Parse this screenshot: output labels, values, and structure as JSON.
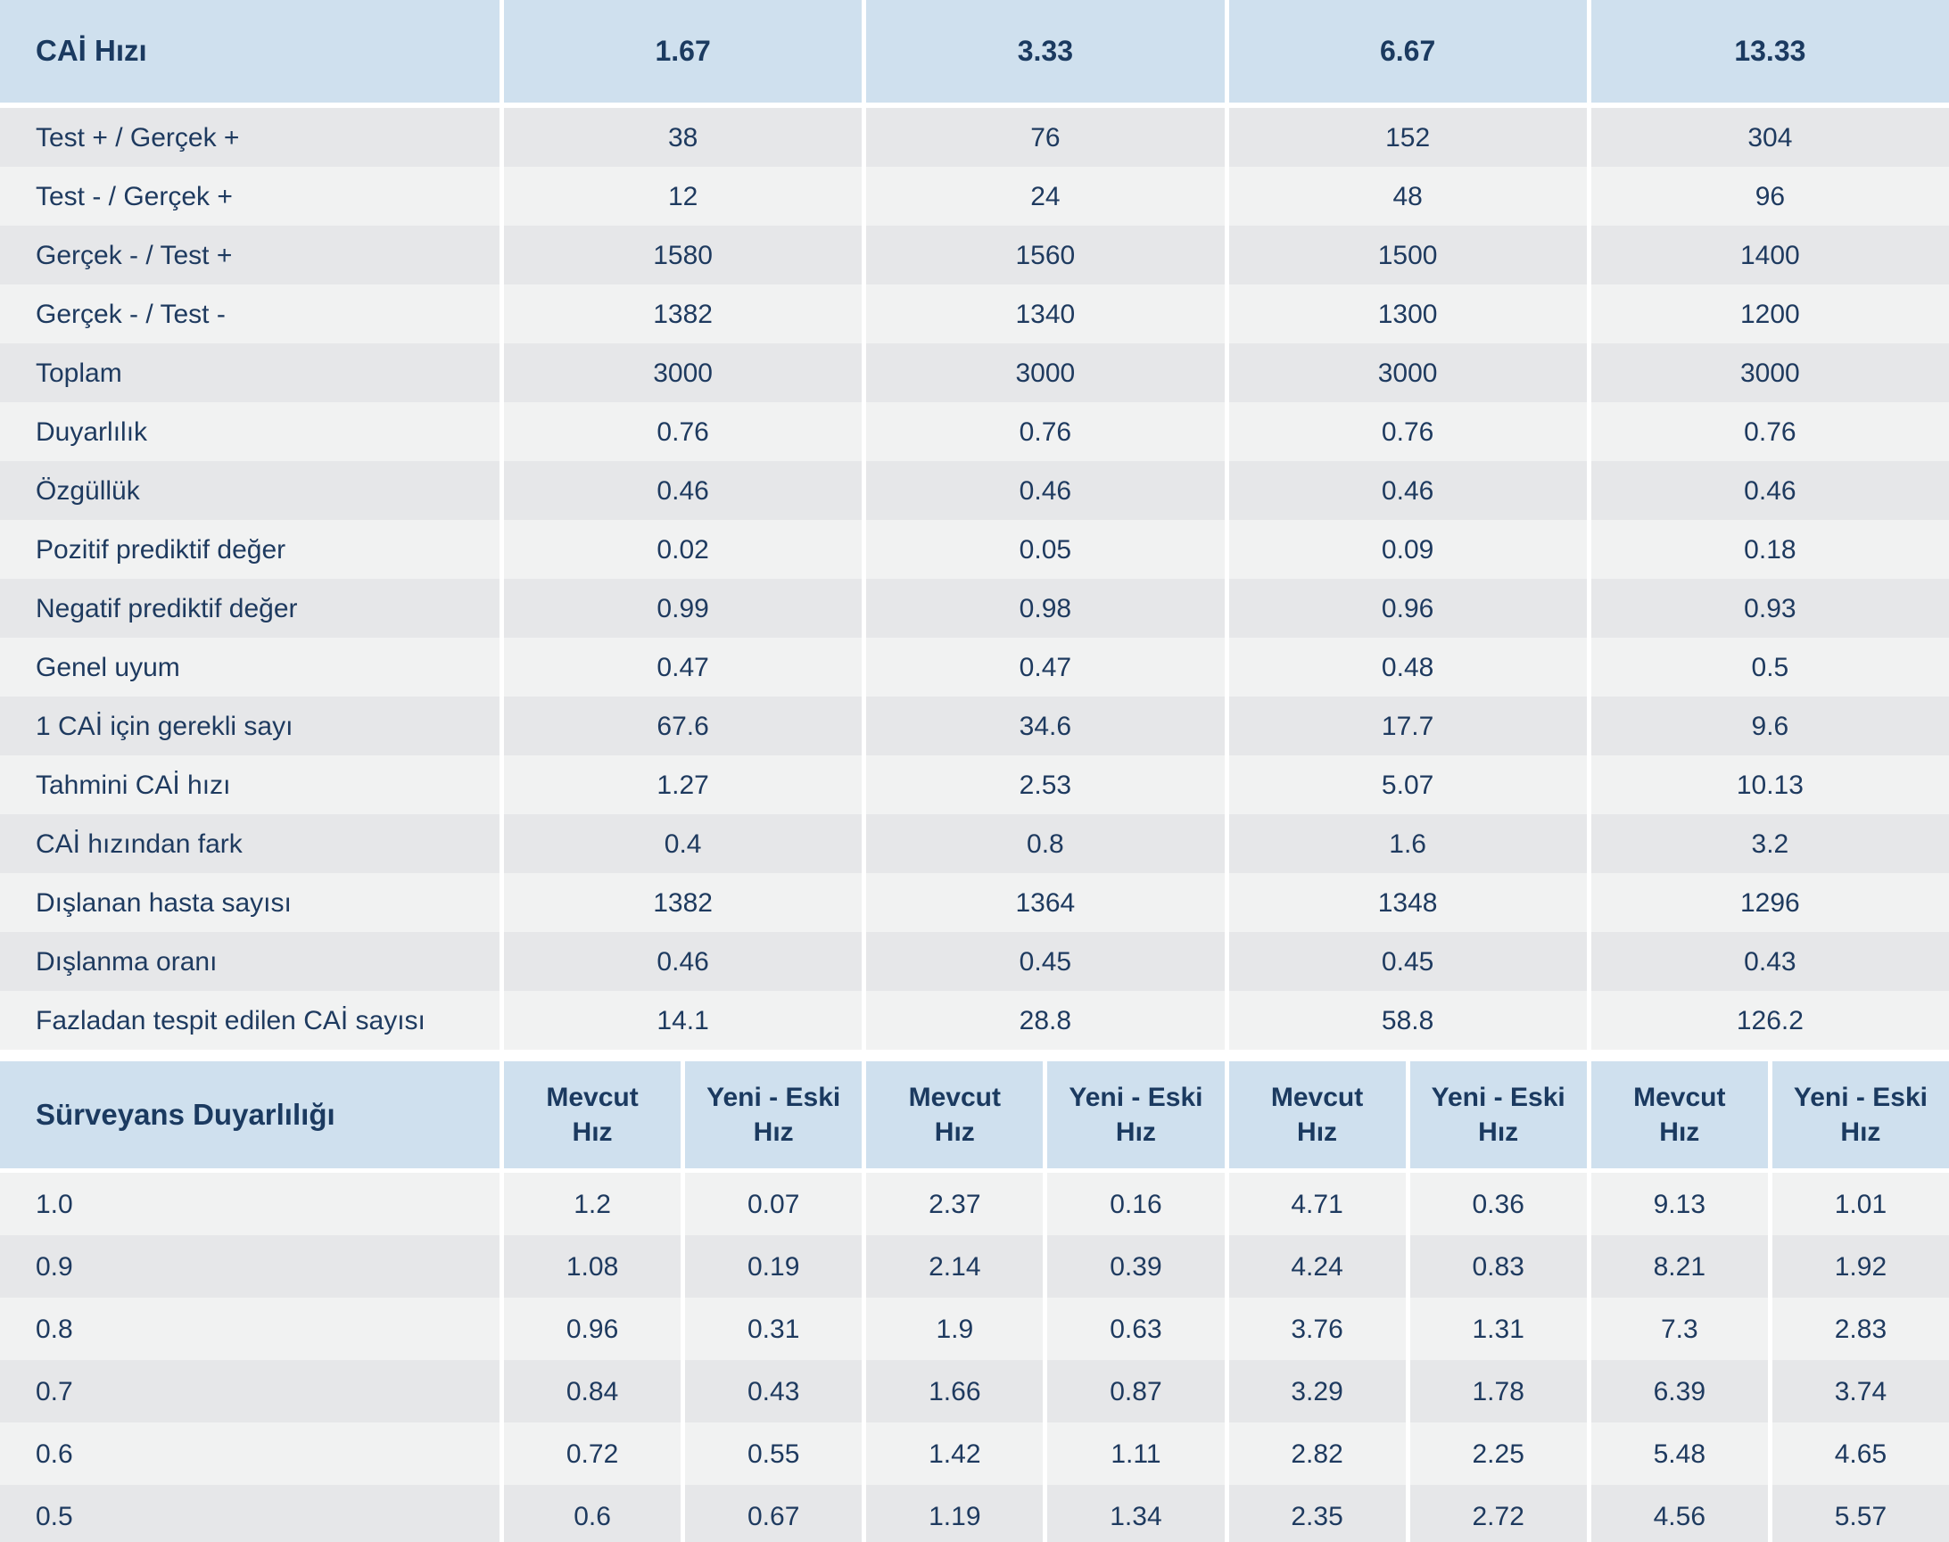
{
  "colors": {
    "header_bg": "#cfe0ee",
    "row_dark": "#e6e7e9",
    "row_light": "#f1f2f2",
    "text": "#1e3a5f",
    "header_text": "#1b3a60",
    "background": "#ffffff"
  },
  "chart_data": [
    {
      "type": "table",
      "title": "CAİ Hızı",
      "corner_label": "CAİ Hızı",
      "columns": [
        "1.67",
        "3.33",
        "6.67",
        "13.33"
      ],
      "rows": [
        {
          "label": "Test + / Gerçek +",
          "values": [
            38,
            76,
            152,
            304
          ]
        },
        {
          "label": "Test - / Gerçek +",
          "values": [
            12,
            24,
            48,
            96
          ]
        },
        {
          "label": "Gerçek - / Test +",
          "values": [
            1580,
            1560,
            1500,
            1400
          ]
        },
        {
          "label": "Gerçek - / Test -",
          "values": [
            1382,
            1340,
            1300,
            1200
          ]
        },
        {
          "label": "Toplam",
          "values": [
            3000,
            3000,
            3000,
            3000
          ]
        },
        {
          "label": "Duyarlılık",
          "values": [
            0.76,
            0.76,
            0.76,
            0.76
          ]
        },
        {
          "label": "Özgüllük",
          "values": [
            0.46,
            0.46,
            0.46,
            0.46
          ]
        },
        {
          "label": "Pozitif prediktif değer",
          "values": [
            0.02,
            0.05,
            0.09,
            0.18
          ]
        },
        {
          "label": "Negatif prediktif değer",
          "values": [
            0.99,
            0.98,
            0.96,
            0.93
          ]
        },
        {
          "label": "Genel uyum",
          "values": [
            0.47,
            0.47,
            0.48,
            0.5
          ]
        },
        {
          "label": "1 CAİ için gerekli sayı",
          "values": [
            67.6,
            34.6,
            17.7,
            9.6
          ]
        },
        {
          "label": "Tahmini CAİ hızı",
          "values": [
            1.27,
            2.53,
            5.07,
            10.13
          ]
        },
        {
          "label": "CAİ hızından fark",
          "values": [
            0.4,
            0.8,
            1.6,
            3.2
          ]
        },
        {
          "label": "Dışlanan hasta sayısı",
          "values": [
            1382,
            1364,
            1348,
            1296
          ]
        },
        {
          "label": "Dışlanma oranı",
          "values": [
            0.46,
            0.45,
            0.45,
            0.43
          ]
        },
        {
          "label": "Fazladan tespit edilen CAİ sayısı",
          "values": [
            14.1,
            28.8,
            58.8,
            126.2
          ]
        }
      ],
      "first_row_shade": "dark",
      "layout": {
        "legend": "none",
        "grid": "striped-rows"
      }
    },
    {
      "type": "table",
      "title": "Sürveyans Duyarlılığı",
      "corner_label": "Sürveyans Duyarlılığı",
      "columns": [
        {
          "line1": "Mevcut",
          "line2": "Hız"
        },
        {
          "line1": "Yeni - Eski",
          "line2": "Hız"
        },
        {
          "line1": "Mevcut",
          "line2": "Hız"
        },
        {
          "line1": "Yeni - Eski",
          "line2": "Hız"
        },
        {
          "line1": "Mevcut",
          "line2": "Hız"
        },
        {
          "line1": "Yeni - Eski",
          "line2": "Hız"
        },
        {
          "line1": "Mevcut",
          "line2": "Hız"
        },
        {
          "line1": "Yeni - Eski",
          "line2": "Hız"
        }
      ],
      "rows": [
        {
          "label": "1.0",
          "values": [
            1.2,
            0.07,
            2.37,
            0.16,
            4.71,
            0.36,
            9.13,
            1.01
          ]
        },
        {
          "label": "0.9",
          "values": [
            1.08,
            0.19,
            2.14,
            0.39,
            4.24,
            0.83,
            8.21,
            1.92
          ]
        },
        {
          "label": "0.8",
          "values": [
            0.96,
            0.31,
            1.9,
            0.63,
            3.76,
            1.31,
            7.3,
            2.83
          ]
        },
        {
          "label": "0.7",
          "values": [
            0.84,
            0.43,
            1.66,
            0.87,
            3.29,
            1.78,
            6.39,
            3.74
          ]
        },
        {
          "label": "0.6",
          "values": [
            0.72,
            0.55,
            1.42,
            1.11,
            2.82,
            2.25,
            5.48,
            4.65
          ]
        },
        {
          "label": "0.5",
          "values": [
            0.6,
            0.67,
            1.19,
            1.34,
            2.35,
            2.72,
            4.56,
            5.57
          ]
        }
      ],
      "first_row_shade": "light",
      "layout": {
        "legend": "none",
        "grid": "striped-rows"
      }
    }
  ]
}
